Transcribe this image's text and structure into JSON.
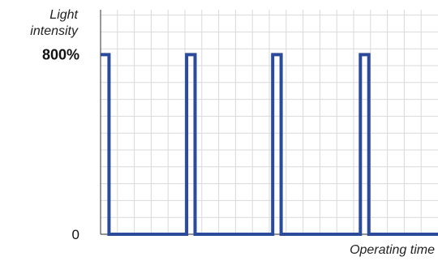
{
  "chart_data": {
    "type": "line",
    "title": "",
    "ylabel": "Light intensity",
    "ylabel_lines": [
      "Light",
      "intensity"
    ],
    "xlabel": "Operating time",
    "y_tick_labels": [
      {
        "value": 0,
        "label": "0"
      },
      {
        "value": 800,
        "label": "800%"
      }
    ],
    "ylim": [
      0,
      1000
    ],
    "xlim": [
      0,
      100
    ],
    "grid": true,
    "legend": "none",
    "colors": {
      "series": "#2b4a9a",
      "grid": "#d9d9d9",
      "axis": "#555555"
    },
    "series": [
      {
        "x": [
          0,
          2.5,
          2.5,
          25.5,
          25.5,
          28,
          28,
          51,
          51,
          53.5,
          53.5,
          77,
          77,
          79.5,
          79.5,
          100
        ],
        "y": [
          800,
          800,
          0,
          0,
          800,
          800,
          0,
          0,
          800,
          800,
          0,
          0,
          800,
          800,
          0,
          0
        ]
      }
    ]
  }
}
